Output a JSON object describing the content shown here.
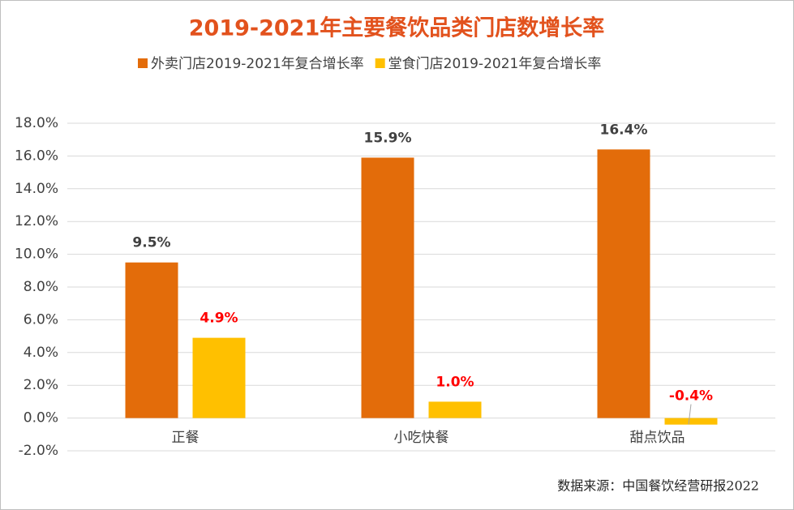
{
  "chart_data": {
    "type": "bar",
    "title": "2019-2021年主要餐饮品类门店数增长率",
    "categories": [
      "正餐",
      "小吃快餐",
      "甜点饮品"
    ],
    "series": [
      {
        "name": "外卖门店2019-2021年复合增长率",
        "color": "#e36c0a",
        "label_color": "#404040",
        "values": [
          9.5,
          15.9,
          16.4
        ],
        "value_labels": [
          "9.5%",
          "15.9%",
          "16.4%"
        ]
      },
      {
        "name": "堂食门店2019-2021年复合增长率",
        "color": "#ffc000",
        "label_color": "#ff0000",
        "values": [
          4.9,
          1.0,
          -0.4
        ],
        "value_labels": [
          "4.9%",
          "1.0%",
          "-0.4%"
        ]
      }
    ],
    "ylim": [
      -2,
      18
    ],
    "yticks": [
      {
        "value": -2,
        "label": "-2.0%"
      },
      {
        "value": 0,
        "label": "0.0%"
      },
      {
        "value": 2,
        "label": "2.0%"
      },
      {
        "value": 4,
        "label": "4.0%"
      },
      {
        "value": 6,
        "label": "6.0%"
      },
      {
        "value": 8,
        "label": "8.0%"
      },
      {
        "value": 10,
        "label": "10.0%"
      },
      {
        "value": 12,
        "label": "12.0%"
      },
      {
        "value": 14,
        "label": "14.0%"
      },
      {
        "value": 16,
        "label": "16.0%"
      },
      {
        "value": 18,
        "label": "18.0%"
      }
    ],
    "grid": true,
    "legend": "top",
    "source": "数据来源：中国餐饮经营研报2022"
  }
}
